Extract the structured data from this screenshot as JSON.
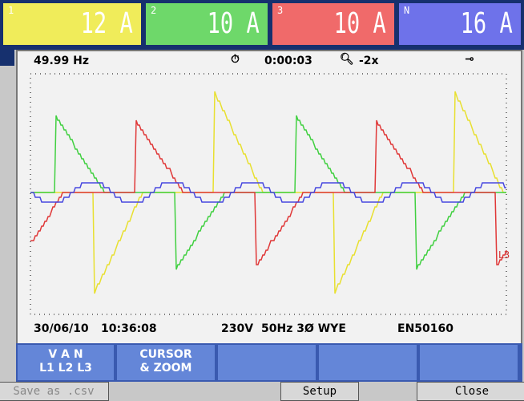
{
  "header": {
    "channels": [
      {
        "label": "1",
        "value": "12 A"
      },
      {
        "label": "2",
        "value": "10 A"
      },
      {
        "label": "3",
        "value": "10 A"
      },
      {
        "label": "N",
        "value": "16 A"
      }
    ]
  },
  "status": {
    "frequency": "49.99 Hz",
    "elapsed": "0:00:03",
    "zoom": "-2x"
  },
  "trace_label": "L3",
  "footer": {
    "date": "30/06/10",
    "time": "10:36:08",
    "voltage": "230V",
    "config": "50Hz 3Ø WYE",
    "standard": "EN50160"
  },
  "softkeys": {
    "key1_top": "V  A  N",
    "key1_bottom": "L1  L2  L3",
    "key2_top": "CURSOR",
    "key2_bottom": "& ZOOM"
  },
  "buttons": {
    "save": "Save as .csv",
    "setup": "Setup",
    "close": "Close"
  }
}
